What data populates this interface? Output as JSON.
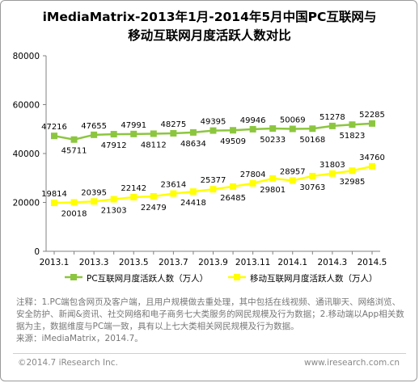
{
  "chart_data": {
    "type": "line",
    "title_line1": "iMediaMatrix-2013年1月-2014年5月中国PC互联网与",
    "title_line2": "移动互联网月度活跃人数对比",
    "x": [
      "2013.1",
      "2013.2",
      "2013.3",
      "2013.4",
      "2013.5",
      "2013.6",
      "2013.7",
      "2013.8",
      "2013.9",
      "2013.10",
      "2013.11",
      "2013.12",
      "2014.1",
      "2014.2",
      "2014.3",
      "2014.4",
      "2014.5"
    ],
    "x_tick_labels": [
      "2013.1",
      "2013.3",
      "2013.5",
      "2013.7",
      "2013.9",
      "2013.11",
      "2014.1",
      "2014.3",
      "2014.5"
    ],
    "ylim": [
      0,
      80000
    ],
    "y_ticks": [
      "0",
      "20000",
      "40000",
      "60000",
      "80000"
    ],
    "series": [
      {
        "name": "PC互联网月度活跃人数（万人）",
        "color": "#8cc63f",
        "values": [
          47216,
          45711,
          47655,
          47912,
          47991,
          48112,
          48275,
          48634,
          49395,
          49509,
          49946,
          50233,
          50069,
          50168,
          51278,
          51823,
          52285
        ]
      },
      {
        "name": "移动互联网月度活跃人数（万人）",
        "color": "#ffff00",
        "values": [
          19814,
          20018,
          20395,
          21303,
          22142,
          22479,
          23614,
          24418,
          25377,
          26485,
          27804,
          29801,
          28957,
          30763,
          31803,
          32985,
          34760
        ]
      }
    ],
    "grid": false,
    "legend": "bottom"
  },
  "note": "注释：1.PC端包含网页及客户端，且用户规模做去重处理，其中包括在线视频、通讯聊天、网络浏览、安全防护、新闻&资讯、社交网络和电子商务七大类服务的网民规模及行为数据；2.移动端以App相关数据为主，数据维度与PC端一致，具有以上七大类相关网民规模及行为数据。",
  "source": "来源：iMediaMatrix，2014.7。",
  "copyright": "©2014.7 iResearch Inc.",
  "website": "www.iresearch.com.cn"
}
